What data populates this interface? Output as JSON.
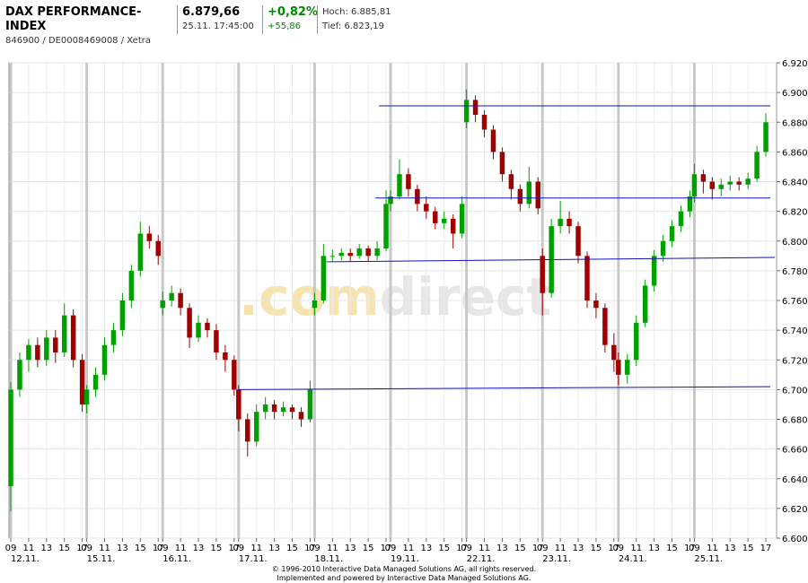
{
  "header": {
    "title": "DAX PERFORMANCE-INDEX",
    "id_line": "846900 / DE0008469008 / Xetra",
    "price": "6.879,66",
    "timestamp": "25.11. 17:45:00",
    "change_pct": "+0,82%",
    "change_abs": "+55,86",
    "high": "Hoch: 6.885,81",
    "low": "Tief: 6.823,19"
  },
  "footer": [
    "© 1996-2010 Interactive Data Managed Solutions AG, all rights reserved.",
    "Implemented and powered by Interactive Data Managed Solutions AG."
  ],
  "chart_data": {
    "type": "candlestick",
    "watermark": [
      ".com",
      "direct"
    ],
    "up_color": "#00a000",
    "down_color": "#a00000",
    "line_color": "#1010c0",
    "grid": true,
    "xlim": [
      0,
      85.5
    ],
    "ylim": [
      6.6,
      6.92
    ],
    "yticks": [
      {
        "value": 6.6,
        "label": "6.600"
      },
      {
        "value": 6.62,
        "label": "6.620"
      },
      {
        "value": 6.64,
        "label": "6.640"
      },
      {
        "value": 6.66,
        "label": "6.660"
      },
      {
        "value": 6.68,
        "label": "6.680"
      },
      {
        "value": 6.7,
        "label": "6.700"
      },
      {
        "value": 6.72,
        "label": "6.720"
      },
      {
        "value": 6.74,
        "label": "6.740"
      },
      {
        "value": 6.76,
        "label": "6.760"
      },
      {
        "value": 6.78,
        "label": "6.780"
      },
      {
        "value": 6.8,
        "label": "6.800"
      },
      {
        "value": 6.82,
        "label": "6.820"
      },
      {
        "value": 6.84,
        "label": "6.840"
      },
      {
        "value": 6.86,
        "label": "6.860"
      },
      {
        "value": 6.88,
        "label": "6.880"
      },
      {
        "value": 6.9,
        "label": "6.900"
      },
      {
        "value": 6.92,
        "label": "6.920"
      }
    ],
    "xday_ticks": [
      {
        "value": 0,
        "label": "12.11."
      },
      {
        "value": 8.5,
        "label": "15.11."
      },
      {
        "value": 17,
        "label": "16.11."
      },
      {
        "value": 25.5,
        "label": "17.11."
      },
      {
        "value": 34,
        "label": "18.11."
      },
      {
        "value": 42.5,
        "label": "19.11."
      },
      {
        "value": 51,
        "label": "22.11."
      },
      {
        "value": 59.5,
        "label": "23.11."
      },
      {
        "value": 68,
        "label": "24.11."
      },
      {
        "value": 76.5,
        "label": "25.11."
      }
    ],
    "xticks": [
      {
        "value": 0,
        "label": "09"
      },
      {
        "value": 2,
        "label": "11"
      },
      {
        "value": 4,
        "label": "13"
      },
      {
        "value": 6,
        "label": "15"
      },
      {
        "value": 8,
        "label": "17"
      },
      {
        "value": 8.5,
        "label": "09"
      },
      {
        "value": 10.5,
        "label": "11"
      },
      {
        "value": 12.5,
        "label": "13"
      },
      {
        "value": 14.5,
        "label": "15"
      },
      {
        "value": 16.5,
        "label": "17"
      },
      {
        "value": 17,
        "label": "09"
      },
      {
        "value": 19,
        "label": "11"
      },
      {
        "value": 21,
        "label": "13"
      },
      {
        "value": 23,
        "label": "15"
      },
      {
        "value": 25,
        "label": "17"
      },
      {
        "value": 25.5,
        "label": "09"
      },
      {
        "value": 27.5,
        "label": "11"
      },
      {
        "value": 29.5,
        "label": "13"
      },
      {
        "value": 31.5,
        "label": "15"
      },
      {
        "value": 33.5,
        "label": "17"
      },
      {
        "value": 34,
        "label": "09"
      },
      {
        "value": 36,
        "label": "11"
      },
      {
        "value": 38,
        "label": "13"
      },
      {
        "value": 40,
        "label": "15"
      },
      {
        "value": 42,
        "label": "17"
      },
      {
        "value": 42.5,
        "label": "09"
      },
      {
        "value": 44.5,
        "label": "11"
      },
      {
        "value": 46.5,
        "label": "13"
      },
      {
        "value": 48.5,
        "label": "15"
      },
      {
        "value": 50.5,
        "label": "17"
      },
      {
        "value": 51,
        "label": "09"
      },
      {
        "value": 53,
        "label": "11"
      },
      {
        "value": 55,
        "label": "13"
      },
      {
        "value": 57,
        "label": "15"
      },
      {
        "value": 59,
        "label": "17"
      },
      {
        "value": 59.5,
        "label": "09"
      },
      {
        "value": 61.5,
        "label": "11"
      },
      {
        "value": 63.5,
        "label": "13"
      },
      {
        "value": 65.5,
        "label": "15"
      },
      {
        "value": 67.5,
        "label": "17"
      },
      {
        "value": 68,
        "label": "09"
      },
      {
        "value": 70,
        "label": "11"
      },
      {
        "value": 72,
        "label": "13"
      },
      {
        "value": 74,
        "label": "15"
      },
      {
        "value": 76,
        "label": "17"
      },
      {
        "value": 76.5,
        "label": "09"
      },
      {
        "value": 78.5,
        "label": "11"
      },
      {
        "value": 80.5,
        "label": "13"
      },
      {
        "value": 82.5,
        "label": "15"
      },
      {
        "value": 84.5,
        "label": "17"
      }
    ],
    "x": [
      0,
      1,
      2,
      3,
      4,
      5,
      6,
      7,
      8,
      8.5,
      9.5,
      10.5,
      11.5,
      12.5,
      13.5,
      14.5,
      15.5,
      16.5,
      17,
      18,
      19,
      20,
      21,
      22,
      23,
      24,
      25,
      25.5,
      26.5,
      27.5,
      28.5,
      29.5,
      30.5,
      31.5,
      32.5,
      33.5,
      34,
      35,
      36,
      37,
      38,
      39,
      40,
      41,
      42,
      42.5,
      43.5,
      44.5,
      45.5,
      46.5,
      47.5,
      48.5,
      49.5,
      50.5,
      51,
      52,
      53,
      54,
      55,
      56,
      57,
      58,
      59,
      59.5,
      60.5,
      61.5,
      62.5,
      63.5,
      64.5,
      65.5,
      66.5,
      67.5,
      68,
      69,
      70,
      71,
      72,
      73,
      74,
      75,
      76,
      76.5,
      77.5,
      78.5,
      79.5,
      80.5,
      81.5,
      82.5,
      83.5,
      84.5
    ],
    "ohlc": [
      [
        6.635,
        6.705,
        6.618,
        6.7
      ],
      [
        6.7,
        6.725,
        6.695,
        6.72
      ],
      [
        6.72,
        6.734,
        6.712,
        6.73
      ],
      [
        6.73,
        6.735,
        6.715,
        6.72
      ],
      [
        6.72,
        6.74,
        6.716,
        6.735
      ],
      [
        6.735,
        6.74,
        6.718,
        6.725
      ],
      [
        6.725,
        6.758,
        6.722,
        6.75
      ],
      [
        6.75,
        6.754,
        6.715,
        6.72
      ],
      [
        6.72,
        6.724,
        6.685,
        6.69
      ],
      [
        6.69,
        6.703,
        6.684,
        6.7
      ],
      [
        6.7,
        6.715,
        6.695,
        6.71
      ],
      [
        6.71,
        6.735,
        6.706,
        6.73
      ],
      [
        6.73,
        6.745,
        6.725,
        6.74
      ],
      [
        6.74,
        6.765,
        6.736,
        6.76
      ],
      [
        6.76,
        6.784,
        6.755,
        6.78
      ],
      [
        6.78,
        6.813,
        6.776,
        6.805
      ],
      [
        6.805,
        6.81,
        6.795,
        6.8
      ],
      [
        6.8,
        6.804,
        6.784,
        6.79
      ],
      [
        6.755,
        6.766,
        6.75,
        6.76
      ],
      [
        6.76,
        6.77,
        6.756,
        6.765
      ],
      [
        6.765,
        6.768,
        6.75,
        6.755
      ],
      [
        6.755,
        6.758,
        6.728,
        6.735
      ],
      [
        6.735,
        6.75,
        6.732,
        6.745
      ],
      [
        6.745,
        6.748,
        6.735,
        6.74
      ],
      [
        6.74,
        6.744,
        6.72,
        6.725
      ],
      [
        6.725,
        6.73,
        6.712,
        6.72
      ],
      [
        6.72,
        6.723,
        6.696,
        6.7
      ],
      [
        6.7,
        6.703,
        6.672,
        6.68
      ],
      [
        6.68,
        6.684,
        6.655,
        6.665
      ],
      [
        6.665,
        6.69,
        6.662,
        6.685
      ],
      [
        6.685,
        6.695,
        6.68,
        6.69
      ],
      [
        6.69,
        6.693,
        6.68,
        6.685
      ],
      [
        6.685,
        6.692,
        6.682,
        6.688
      ],
      [
        6.688,
        6.69,
        6.68,
        6.685
      ],
      [
        6.685,
        6.688,
        6.675,
        6.68
      ],
      [
        6.68,
        6.706,
        6.678,
        6.7
      ],
      [
        6.755,
        6.765,
        6.75,
        6.76
      ],
      [
        6.76,
        6.798,
        6.758,
        6.79
      ],
      [
        6.79,
        6.794,
        6.786,
        6.79
      ],
      [
        6.79,
        6.795,
        6.787,
        6.792
      ],
      [
        6.792,
        6.795,
        6.786,
        6.79
      ],
      [
        6.79,
        6.798,
        6.788,
        6.795
      ],
      [
        6.795,
        6.797,
        6.786,
        6.79
      ],
      [
        6.79,
        6.8,
        6.787,
        6.795
      ],
      [
        6.795,
        6.834,
        6.793,
        6.825
      ],
      [
        6.825,
        6.834,
        6.82,
        6.83
      ],
      [
        6.83,
        6.855,
        6.828,
        6.845
      ],
      [
        6.845,
        6.849,
        6.83,
        6.835
      ],
      [
        6.835,
        6.838,
        6.82,
        6.825
      ],
      [
        6.825,
        6.83,
        6.815,
        6.82
      ],
      [
        6.82,
        6.823,
        6.808,
        6.812
      ],
      [
        6.812,
        6.82,
        6.808,
        6.815
      ],
      [
        6.815,
        6.818,
        6.795,
        6.805
      ],
      [
        6.805,
        6.83,
        6.802,
        6.825
      ],
      [
        6.88,
        6.902,
        6.876,
        6.895
      ],
      [
        6.895,
        6.898,
        6.88,
        6.885
      ],
      [
        6.885,
        6.888,
        6.87,
        6.875
      ],
      [
        6.875,
        6.878,
        6.855,
        6.86
      ],
      [
        6.86,
        6.863,
        6.84,
        6.845
      ],
      [
        6.845,
        6.848,
        6.828,
        6.835
      ],
      [
        6.835,
        6.838,
        6.82,
        6.825
      ],
      [
        6.825,
        6.85,
        6.822,
        6.84
      ],
      [
        6.84,
        6.843,
        6.818,
        6.822
      ],
      [
        6.79,
        6.795,
        6.75,
        6.765
      ],
      [
        6.765,
        6.815,
        6.762,
        6.81
      ],
      [
        6.81,
        6.827,
        6.805,
        6.815
      ],
      [
        6.815,
        6.82,
        6.805,
        6.81
      ],
      [
        6.81,
        6.813,
        6.785,
        6.79
      ],
      [
        6.79,
        6.793,
        6.755,
        6.76
      ],
      [
        6.76,
        6.765,
        6.748,
        6.755
      ],
      [
        6.755,
        6.758,
        6.725,
        6.73
      ],
      [
        6.73,
        6.738,
        6.712,
        6.72
      ],
      [
        6.72,
        6.725,
        6.703,
        6.71
      ],
      [
        6.71,
        6.724,
        6.704,
        6.72
      ],
      [
        6.72,
        6.75,
        6.716,
        6.745
      ],
      [
        6.745,
        6.774,
        6.742,
        6.77
      ],
      [
        6.77,
        6.794,
        6.766,
        6.79
      ],
      [
        6.79,
        6.804,
        6.786,
        6.8
      ],
      [
        6.8,
        6.814,
        6.796,
        6.81
      ],
      [
        6.81,
        6.824,
        6.806,
        6.82
      ],
      [
        6.82,
        6.834,
        6.816,
        6.83
      ],
      [
        6.83,
        6.852,
        6.826,
        6.845
      ],
      [
        6.845,
        6.848,
        6.832,
        6.84
      ],
      [
        6.84,
        6.843,
        6.828,
        6.835
      ],
      [
        6.835,
        6.842,
        6.83,
        6.838
      ],
      [
        6.838,
        6.844,
        6.834,
        6.84
      ],
      [
        6.84,
        6.843,
        6.834,
        6.838
      ],
      [
        6.838,
        6.846,
        6.835,
        6.842
      ],
      [
        6.842,
        6.864,
        6.84,
        6.86
      ],
      [
        6.86,
        6.886,
        6.857,
        6.88
      ]
    ],
    "lines": [
      {
        "x": [
          41.2,
          85
        ],
        "y": [
          6.891,
          6.891
        ]
      },
      {
        "x": [
          40.8,
          85
        ],
        "y": [
          6.829,
          6.829
        ]
      },
      {
        "x": [
          35.3,
          85.5
        ],
        "y": [
          6.786,
          6.789
        ]
      },
      {
        "x": [
          25.4,
          85
        ],
        "y": [
          6.7,
          6.702
        ]
      }
    ]
  }
}
